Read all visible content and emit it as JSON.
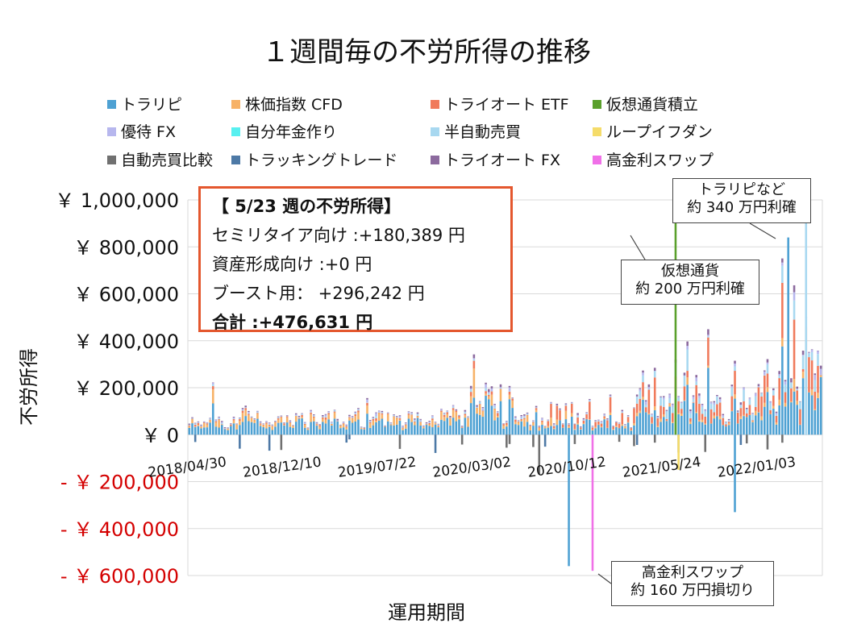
{
  "chart_data": {
    "type": "bar",
    "title": "１週間毎の不労所得の推移",
    "xlabel": "運用期間",
    "ylabel": "不労所得",
    "ylim": [
      -600000,
      1000000
    ],
    "yticks": [
      {
        "value": 1000000,
        "label": "￥ 1,000,000"
      },
      {
        "value": 800000,
        "label": "￥ 800,000"
      },
      {
        "value": 600000,
        "label": "￥ 600,000"
      },
      {
        "value": 400000,
        "label": "￥ 400,000"
      },
      {
        "value": 200000,
        "label": "￥ 200,000"
      },
      {
        "value": 0,
        "label": "￥ 0"
      },
      {
        "value": -200000,
        "label": "- ￥ 200,000"
      },
      {
        "value": -400000,
        "label": "- ￥ 400,000"
      },
      {
        "value": -600000,
        "label": "- ￥ 600,000"
      }
    ],
    "xtick_labels": [
      {
        "index": 0,
        "label": "2018/04/30"
      },
      {
        "index": 32,
        "label": "2018/12/10"
      },
      {
        "index": 64,
        "label": "2019/07/22"
      },
      {
        "index": 96,
        "label": "2020/03/02"
      },
      {
        "index": 128,
        "label": "2020/10/12"
      },
      {
        "index": 160,
        "label": "2021/05/24"
      },
      {
        "index": 192,
        "label": "2022/01/03"
      }
    ],
    "num_weeks": 214,
    "grid": true,
    "legend_position": "top",
    "series": [
      {
        "name": "トラリピ",
        "color": "#4ea1d3"
      },
      {
        "name": "株価指数 CFD",
        "color": "#f7b267"
      },
      {
        "name": "トライオート ETF",
        "color": "#f07a5b"
      },
      {
        "name": "仮想通貨積立",
        "color": "#5aa02c"
      },
      {
        "name": "優待 FX",
        "color": "#b7b7ee"
      },
      {
        "name": "自分年金作り",
        "color": "#58f0f0"
      },
      {
        "name": "半自動売買",
        "color": "#a8d8f0"
      },
      {
        "name": "ループイフダン",
        "color": "#f5dc6a"
      },
      {
        "name": "自動売買比較",
        "color": "#707070"
      },
      {
        "name": "トラッキングトレード",
        "color": "#4d79a6"
      },
      {
        "name": "トライオート FX",
        "color": "#8c6a9e"
      },
      {
        "name": "高金利スワップ",
        "color": "#f070e8"
      }
    ],
    "annotations": [
      {
        "lines": [
          "トラリピなど",
          "約 340 万円利確"
        ]
      },
      {
        "lines": [
          "仮想通貨",
          "約 200 万円利確"
        ]
      },
      {
        "lines": [
          "高金利スワップ",
          "約 160 万円損切り"
        ]
      }
    ]
  },
  "info_box": {
    "header": "【 5/23 週の不労所得】",
    "semi_retire": "セミリタイア向け :+180,389 円",
    "asset": "資産形成向け :+0 円",
    "boost": "ブースト用：  +296,242 円",
    "total": "合計 :+476,631 円"
  }
}
